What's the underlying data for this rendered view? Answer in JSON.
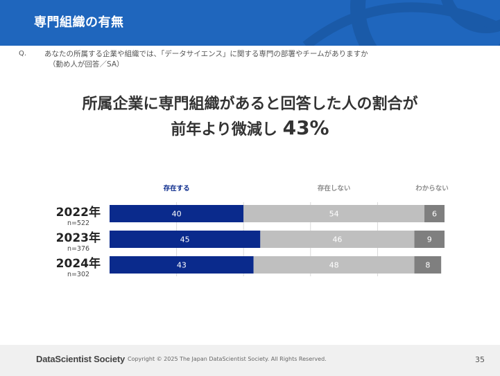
{
  "header": {
    "title": "専門組織の有無"
  },
  "question": {
    "label": "Q.",
    "line1": "あなたの所属する企業や組織では、「データサイエンス」に関する専門の部署やチームがありますか",
    "line2": "（勤め人が回答／SA）"
  },
  "headline": {
    "line1": "所属企業に専門組織があると回答した人の割合が",
    "line2_prefix": "前年より微減し",
    "line2_value": "43%"
  },
  "chart_data": {
    "type": "bar",
    "orientation": "horizontal",
    "stacked": true,
    "categories": [
      "2022年",
      "2023年",
      "2024年"
    ],
    "sample_sizes": [
      "n=522",
      "n=376",
      "n=302"
    ],
    "series": [
      {
        "name": "存在する",
        "values": [
          40,
          45,
          43
        ],
        "color": "#0a2a8c",
        "label_color": "#ffffff"
      },
      {
        "name": "存在しない",
        "values": [
          54,
          46,
          48
        ],
        "color": "#bfbfbf",
        "label_color": "#ffffff"
      },
      {
        "name": "わからない",
        "values": [
          6,
          9,
          8
        ],
        "color": "#7f7f7f",
        "label_color": "#ffffff"
      }
    ],
    "xlim": [
      0,
      100
    ],
    "grid": true,
    "legend": "top"
  },
  "footer": {
    "logo": "DataScientist Society",
    "copyright": "Copyright © 2025 The Japan DataScientist Society. All Rights Reserved.",
    "page": "35"
  }
}
